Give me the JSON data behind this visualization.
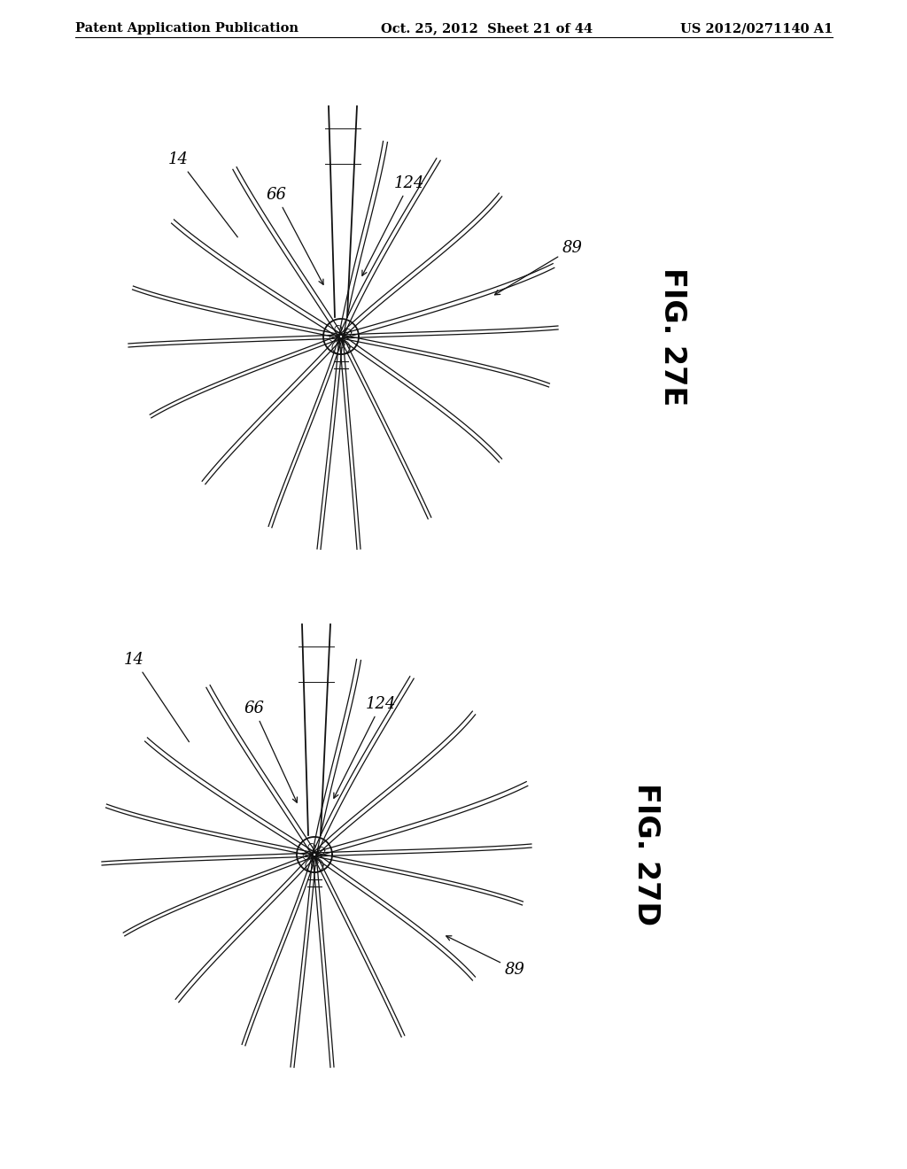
{
  "header_left": "Patent Application Publication",
  "header_mid": "Oct. 25, 2012  Sheet 21 of 44",
  "header_right": "US 2012/0271140 A1",
  "fig_top_label": "FIG. 27E",
  "fig_bot_label": "FIG. 27D",
  "background_color": "#ffffff",
  "line_color": "#111111",
  "label_color": "#000000",
  "header_fontsize": 10.5,
  "fig_label_fontsize": 24,
  "annotation_fontsize": 13
}
